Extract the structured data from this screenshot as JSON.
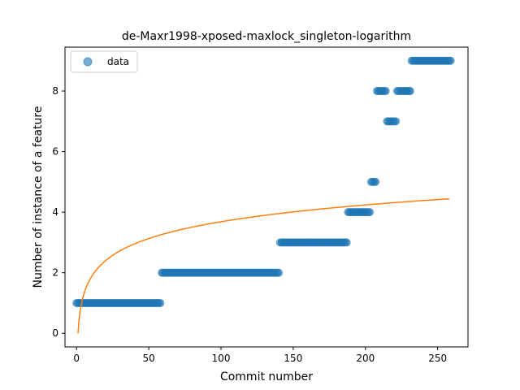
{
  "chart_data": {
    "type": "scatter",
    "title": "de-Maxr1998-xposed-maxlock_singleton-logarithm",
    "xlabel": "Commit number",
    "ylabel": "Number of instance of a feature",
    "xlim": [
      -8,
      271
    ],
    "ylim": [
      -0.45,
      9.45
    ],
    "xticks": [
      0,
      50,
      100,
      150,
      200,
      250
    ],
    "yticks": [
      0,
      2,
      4,
      6,
      8
    ],
    "grid": false,
    "legend": {
      "placement": "top-left",
      "entries": [
        {
          "label": "data"
        }
      ]
    },
    "series": [
      {
        "name": "data",
        "kind": "scatter",
        "color": "#1f77b4",
        "segments": [
          {
            "x_from": 0,
            "x_to": 58,
            "y": 1
          },
          {
            "x_from": 59,
            "x_to": 140,
            "y": 2
          },
          {
            "x_from": 141,
            "x_to": 187,
            "y": 3
          },
          {
            "x_from": 188,
            "x_to": 203,
            "y": 4
          },
          {
            "x_from": 204,
            "x_to": 207,
            "y": 5
          },
          {
            "x_from": 208,
            "x_to": 214,
            "y": 8
          },
          {
            "x_from": 215,
            "x_to": 221,
            "y": 7
          },
          {
            "x_from": 222,
            "x_to": 231,
            "y": 8
          },
          {
            "x_from": 232,
            "x_to": 259,
            "y": 9
          }
        ]
      },
      {
        "kind": "fit-line",
        "color": "#ff7f0e",
        "function": "logarithm",
        "a": 0.8,
        "x_range": [
          1,
          258
        ],
        "y_range": [
          0,
          4.42
        ]
      }
    ]
  }
}
